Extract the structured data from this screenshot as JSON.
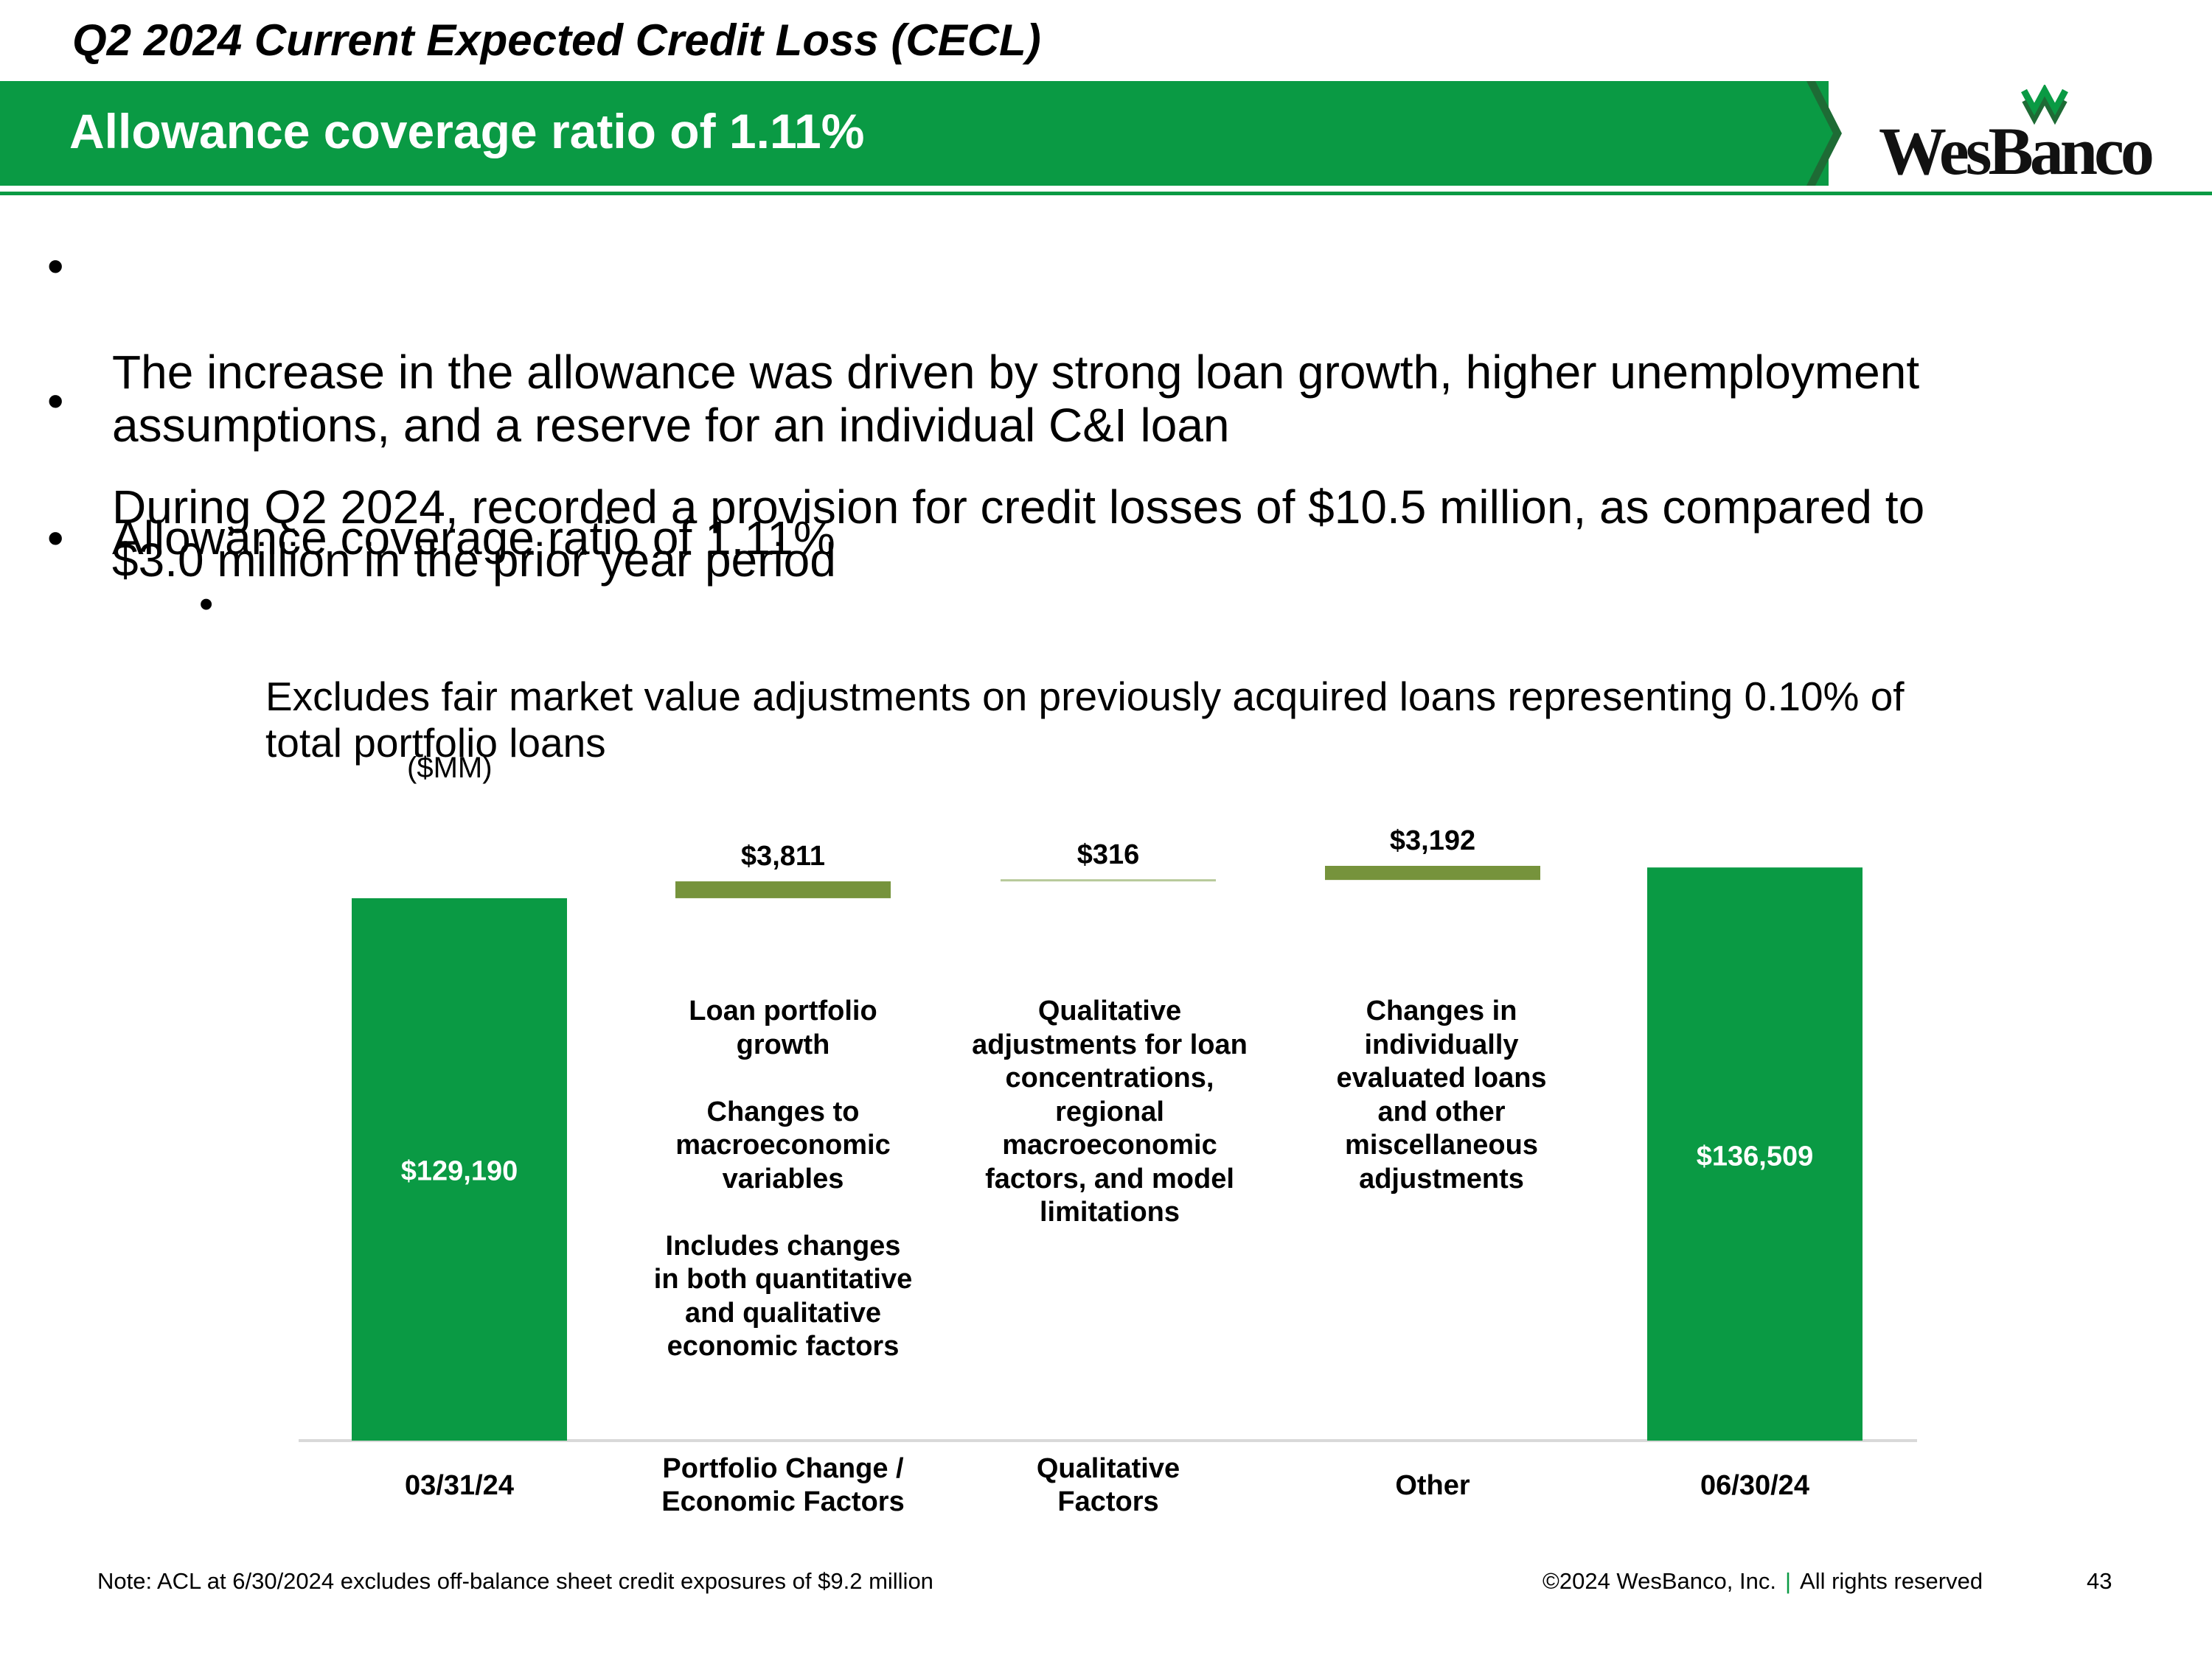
{
  "header": {
    "title": "Q2 2024 Current Expected Credit Loss (CECL)",
    "banner": "Allowance coverage ratio of 1.11%",
    "logo_text": "WesBanco"
  },
  "bullets": [
    {
      "text": "The increase in the allowance was driven by strong loan growth, higher unemployment\nassumptions, and a reserve for an individual C&I loan"
    },
    {
      "text": "During Q2 2024, recorded a provision for credit losses of $10.5 million, as compared to\n$3.0 million in the prior year period"
    },
    {
      "text": "Allowance coverage ratio of 1.11%"
    },
    {
      "text": "Excludes fair market value adjustments on previously acquired loans representing 0.10% of\ntotal portfolio loans"
    }
  ],
  "bullet_symbol": "•",
  "chart_unit": "($MM)",
  "chart_data": {
    "type": "bar",
    "subtype": "waterfall",
    "unit_label": "($MM)",
    "categories": [
      "03/31/24",
      "Portfolio Change /\nEconomic Factors",
      "Qualitative\nFactors",
      "Other",
      "06/30/24"
    ],
    "values": [
      129190,
      3811,
      316,
      3192,
      136509
    ],
    "kinds": [
      "total",
      "delta",
      "delta",
      "delta",
      "total"
    ],
    "labels": [
      "$129,190",
      "$3,811",
      "$316",
      "$3,192",
      "$136,509"
    ],
    "descriptions": [
      "",
      "Loan portfolio\ngrowth\n\nChanges to\nmacroeconomic\nvariables\n\nIncludes changes\nin both quantitative\nand qualitative\neconomic factors",
      "Qualitative\nadjustments for loan\nconcentrations,\nregional\nmacroeconomic\nfactors, and model\nlimitations",
      "Changes in\nindividually\nevaluated loans\nand other\nmiscellaneous\nadjustments",
      ""
    ],
    "colors": {
      "total": "#0a9a44",
      "delta": "#76933c"
    }
  },
  "footer": {
    "note": "Note: ACL at 6/30/2024 excludes off-balance sheet credit exposures of $9.2 million",
    "copyright": "©2024 WesBanco, Inc.",
    "separator": "|",
    "rights": "All rights reserved",
    "page": "43"
  }
}
